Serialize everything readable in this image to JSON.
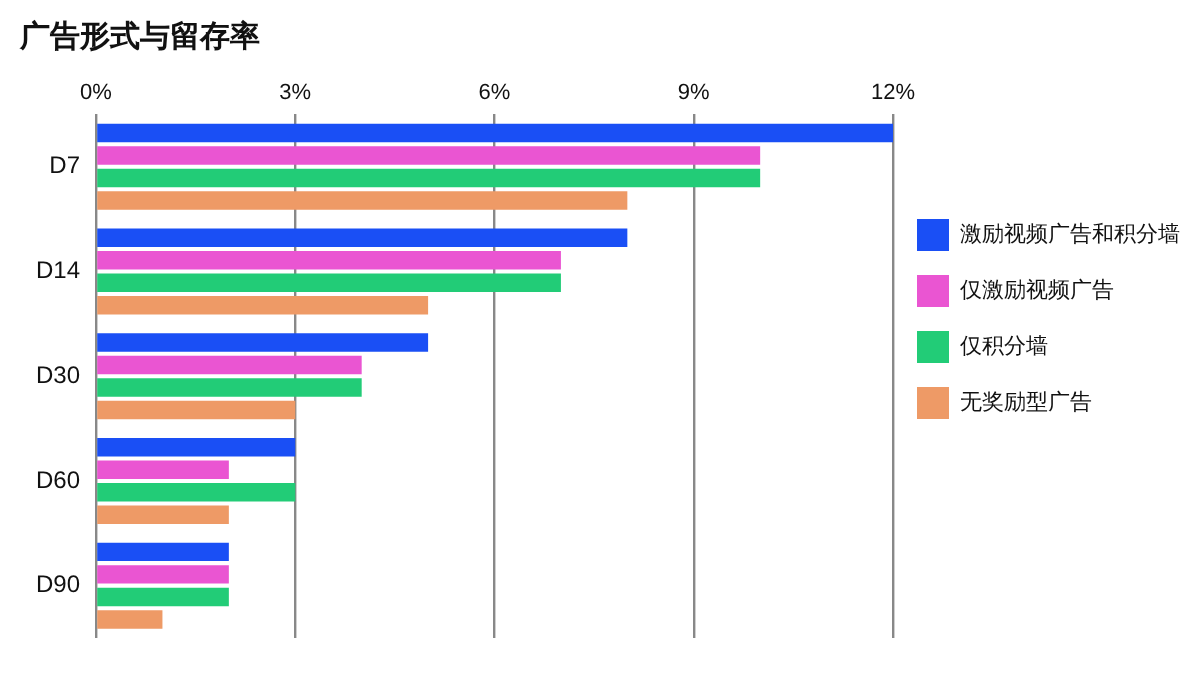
{
  "chart_data": {
    "type": "bar",
    "orientation": "horizontal",
    "title": "广告形式与留存率",
    "categories": [
      "D7",
      "D14",
      "D30",
      "D60",
      "D90"
    ],
    "series": [
      {
        "name": "激励视频广告和积分墙",
        "color": "#1a4ff5",
        "values": [
          12,
          8,
          5,
          3,
          2
        ]
      },
      {
        "name": "仅激励视频广告",
        "color": "#ea55d2",
        "values": [
          10,
          7,
          4,
          2,
          2
        ]
      },
      {
        "name": "仅积分墙",
        "color": "#22cc77",
        "values": [
          10,
          7,
          4,
          3,
          2
        ]
      },
      {
        "name": "无奖励型广告",
        "color": "#ee9a66",
        "values": [
          8,
          5,
          3,
          2,
          1
        ]
      }
    ],
    "xlim": [
      0,
      12
    ],
    "xticks": [
      {
        "value": 0,
        "label": "0%"
      },
      {
        "value": 3,
        "label": "3%"
      },
      {
        "value": 6,
        "label": "6%"
      },
      {
        "value": 9,
        "label": "9%"
      },
      {
        "value": 12,
        "label": "12%"
      }
    ],
    "grid": "x",
    "legend": "right"
  }
}
